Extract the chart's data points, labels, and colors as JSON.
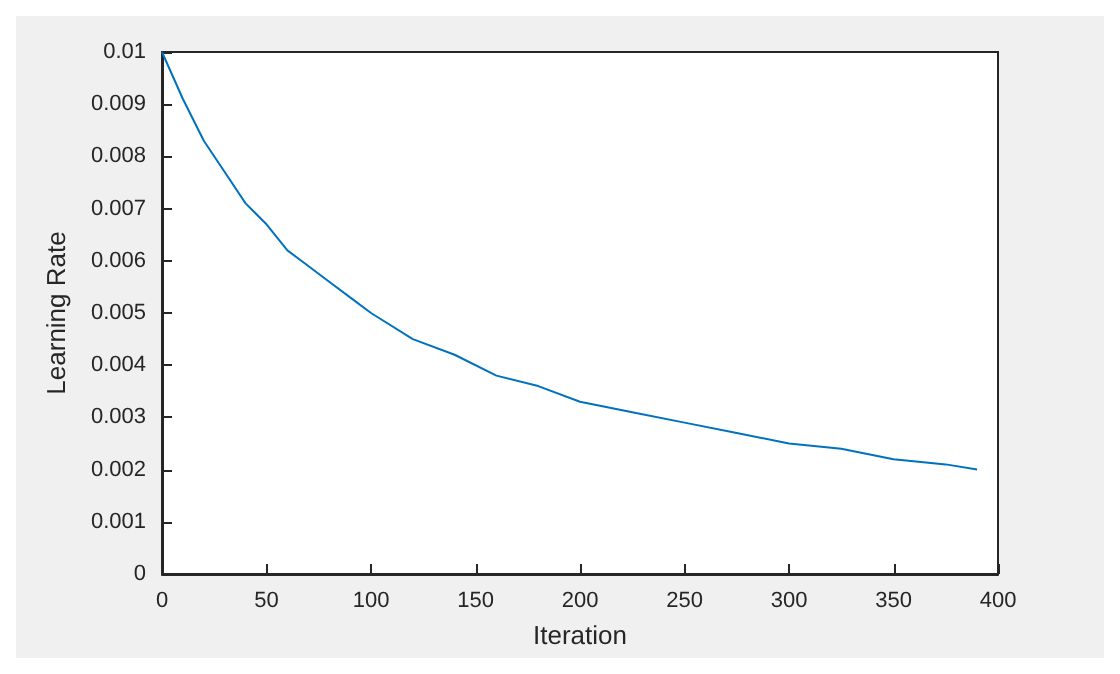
{
  "chart_data": {
    "type": "line",
    "xlabel": "Iteration",
    "ylabel": "Learning Rate",
    "x": [
      0,
      10,
      20,
      30,
      40,
      50,
      60,
      70,
      80,
      90,
      100,
      120,
      140,
      160,
      180,
      200,
      225,
      250,
      275,
      300,
      325,
      350,
      375,
      390
    ],
    "series": [
      {
        "color": "#0072bd",
        "values": [
          0.01,
          0.0091,
          0.0083,
          0.0077,
          0.0071,
          0.0067,
          0.0062,
          0.0059,
          0.0056,
          0.0053,
          0.005,
          0.0045,
          0.0042,
          0.0038,
          0.0036,
          0.0033,
          0.0031,
          0.0029,
          0.0027,
          0.0025,
          0.0024,
          0.0022,
          0.0021,
          0.002
        ]
      }
    ],
    "xlim": [
      0,
      400
    ],
    "xticks": [
      0,
      50,
      100,
      150,
      200,
      250,
      300,
      350,
      400
    ],
    "ylim": [
      0,
      0.01
    ],
    "yticks": [
      0,
      0.001,
      0.002,
      0.003,
      0.004,
      0.005,
      0.006,
      0.007,
      0.008,
      0.009,
      0.01
    ],
    "grid": false,
    "marker": "none",
    "line_style": "solid"
  }
}
